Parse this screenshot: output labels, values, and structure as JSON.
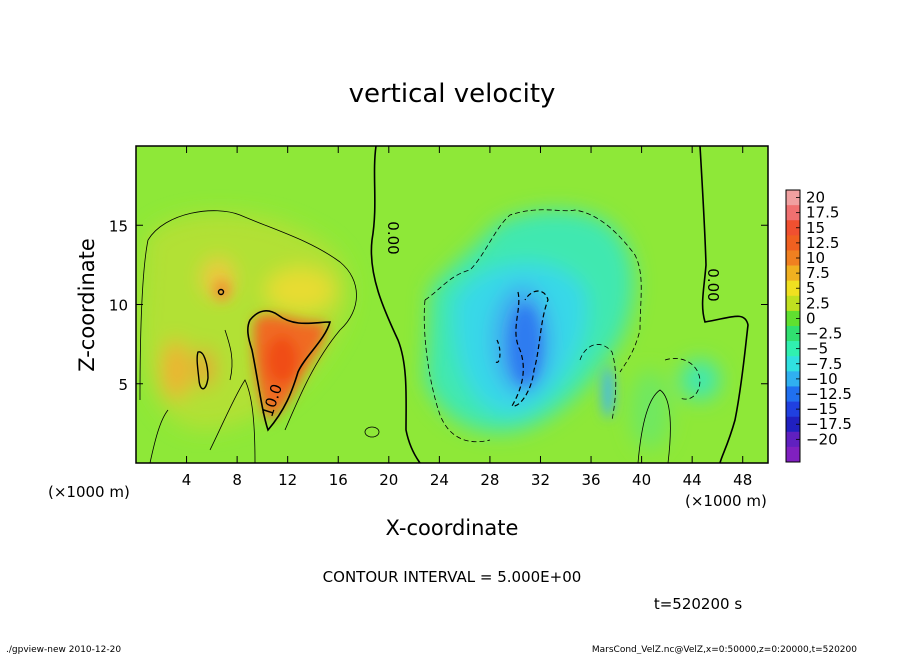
{
  "chart_data": {
    "type": "heatmap",
    "title": "vertical velocity",
    "xlabel": "X-coordinate",
    "ylabel": "Z-coordinate",
    "x_unit_left": "(×1000 m)",
    "x_unit_right": "(×1000 m)",
    "xlim": [
      0,
      50
    ],
    "ylim": [
      0,
      20
    ],
    "x_ticks": [
      4,
      8,
      12,
      16,
      20,
      24,
      28,
      32,
      36,
      40,
      44,
      48
    ],
    "y_ticks": [
      5,
      10,
      15
    ],
    "colorbar": {
      "levels": [
        "20",
        "17.5",
        "15",
        "12.5",
        "10",
        "7.5",
        "5",
        "2.5",
        "0",
        "−2.5",
        "−5",
        "−7.5",
        "−10",
        "−12.5",
        "−15",
        "−17.5",
        "−20"
      ],
      "colors": [
        "#f0a0a0",
        "#f07070",
        "#f05030",
        "#f06020",
        "#f08020",
        "#f0b020",
        "#f0e020",
        "#c0e020",
        "#60e030",
        "#30e070",
        "#30f0b0",
        "#30e0e0",
        "#30b0f0",
        "#2070f0",
        "#2040e0",
        "#2020c0",
        "#6020c0",
        "#8020c0"
      ]
    },
    "contour_interval_text": "CONTOUR INTERVAL = 5.000E+00",
    "contour_labels": [
      "0.00",
      "0.00",
      "10.0"
    ],
    "time_text": "t=520200 s",
    "footer_left": "./gpview-new  2010-12-20",
    "footer_right": "MarsCond_VelZ.nc@VelZ,x=0:50000,z=0:20000,t=520200",
    "features": [
      {
        "kind": "updraft",
        "x": 11.5,
        "z": 7.5,
        "max": 12.5
      },
      {
        "kind": "updraft",
        "x": 6.5,
        "z": 11.0,
        "max": 10
      },
      {
        "kind": "downdraft",
        "x": 30.5,
        "z": 8.0,
        "min": -10
      }
    ]
  }
}
